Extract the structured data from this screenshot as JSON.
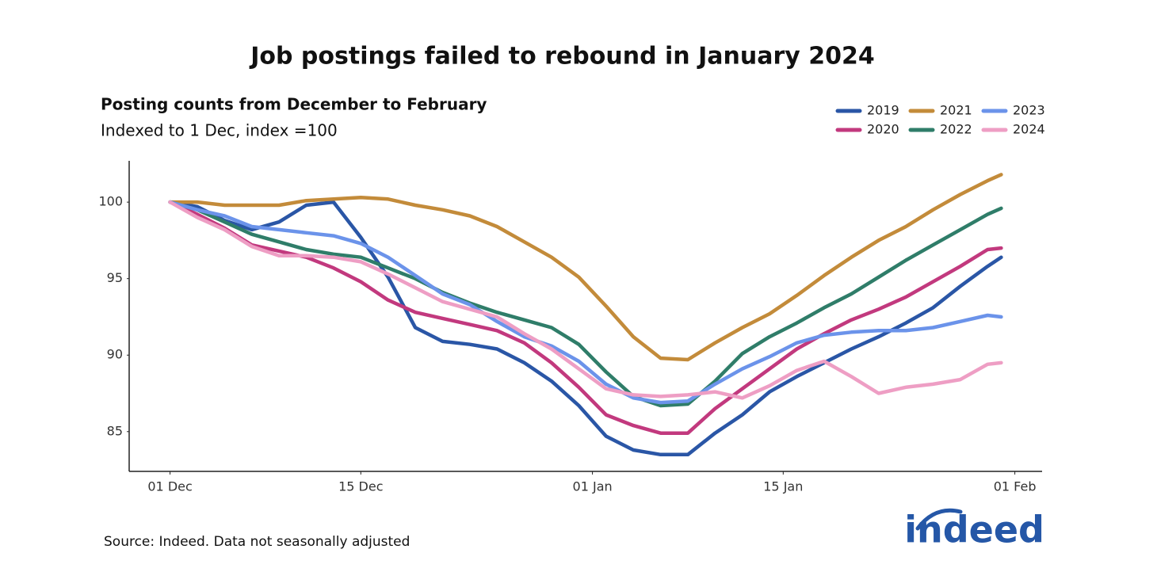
{
  "chart_data": {
    "type": "line",
    "title": "Job postings failed to rebound in January 2024",
    "subtitle": "Posting counts from December to February",
    "subtitle2": "Indexed to 1 Dec, index =100",
    "source": "Source: Indeed. Data not seasonally adjusted",
    "logo": "indeed",
    "x": [
      0,
      2,
      4,
      6,
      8,
      10,
      12,
      14,
      16,
      18,
      20,
      22,
      24,
      26,
      28,
      30,
      32,
      34,
      36,
      38,
      40,
      42,
      44,
      46,
      48,
      50,
      52,
      54,
      56,
      58,
      60,
      61
    ],
    "xlim": [
      -3,
      64
    ],
    "xticks": [
      {
        "value": 0,
        "label": "01 Dec"
      },
      {
        "value": 14,
        "label": "15 Dec"
      },
      {
        "value": 31,
        "label": "01 Jan"
      },
      {
        "value": 45,
        "label": "15 Jan"
      },
      {
        "value": 62,
        "label": "01 Feb"
      }
    ],
    "ylim": [
      82.4,
      102.7
    ],
    "yticks": [
      85,
      90,
      95,
      100
    ],
    "grid": false,
    "legend": "top-right",
    "series": [
      {
        "name": "2019",
        "color": "#2a56a6",
        "values": [
          100,
          99.7,
          98.8,
          98.2,
          98.7,
          99.8,
          100.0,
          97.7,
          95.1,
          91.8,
          90.9,
          90.7,
          90.4,
          89.5,
          88.3,
          86.7,
          84.7,
          83.8,
          83.5,
          83.5,
          84.9,
          86.1,
          87.6,
          88.6,
          89.5,
          90.4,
          91.2,
          92.1,
          93.1,
          94.5,
          95.8,
          96.4
        ]
      },
      {
        "name": "2020",
        "color": "#c2397e",
        "values": [
          100,
          99.2,
          98.3,
          97.2,
          96.8,
          96.4,
          95.7,
          94.8,
          93.6,
          92.8,
          92.4,
          92.0,
          91.6,
          90.8,
          89.5,
          87.9,
          86.1,
          85.4,
          84.9,
          84.9,
          86.5,
          87.8,
          89.1,
          90.4,
          91.4,
          92.3,
          93.0,
          93.8,
          94.8,
          95.8,
          96.9,
          97.0
        ]
      },
      {
        "name": "2021",
        "color": "#c38b3a",
        "values": [
          100,
          100,
          99.8,
          99.8,
          99.8,
          100.1,
          100.2,
          100.3,
          100.2,
          99.8,
          99.5,
          99.1,
          98.4,
          97.4,
          96.4,
          95.1,
          93.2,
          91.2,
          89.8,
          89.7,
          90.8,
          91.8,
          92.7,
          93.9,
          95.2,
          96.4,
          97.5,
          98.4,
          99.5,
          100.5,
          101.4,
          101.8
        ]
      },
      {
        "name": "2022",
        "color": "#2f7d69",
        "values": [
          100,
          99.5,
          98.7,
          97.9,
          97.4,
          96.9,
          96.6,
          96.4,
          95.7,
          95.0,
          94.1,
          93.4,
          92.8,
          92.3,
          91.8,
          90.7,
          88.9,
          87.3,
          86.7,
          86.8,
          88.3,
          90.1,
          91.2,
          92.1,
          93.1,
          94.0,
          95.1,
          96.2,
          97.2,
          98.2,
          99.2,
          99.6
        ]
      },
      {
        "name": "2023",
        "color": "#6b93ea",
        "values": [
          100,
          99.5,
          99.1,
          98.4,
          98.2,
          98.0,
          97.8,
          97.3,
          96.4,
          95.2,
          94.0,
          93.3,
          92.2,
          91.2,
          90.6,
          89.6,
          88.1,
          87.2,
          86.9,
          87.0,
          88.1,
          89.1,
          89.9,
          90.8,
          91.3,
          91.5,
          91.6,
          91.6,
          91.8,
          92.2,
          92.6,
          92.5
        ]
      },
      {
        "name": "2024",
        "color": "#ee9ec4",
        "values": [
          100,
          99.0,
          98.2,
          97.1,
          96.5,
          96.5,
          96.4,
          96.1,
          95.3,
          94.4,
          93.5,
          93.0,
          92.5,
          91.4,
          90.4,
          89.1,
          87.8,
          87.4,
          87.3,
          87.4,
          87.6,
          87.2,
          88.0,
          89.0,
          89.6,
          88.6,
          87.5,
          87.9,
          88.1,
          88.4,
          89.4,
          89.5
        ]
      }
    ]
  }
}
